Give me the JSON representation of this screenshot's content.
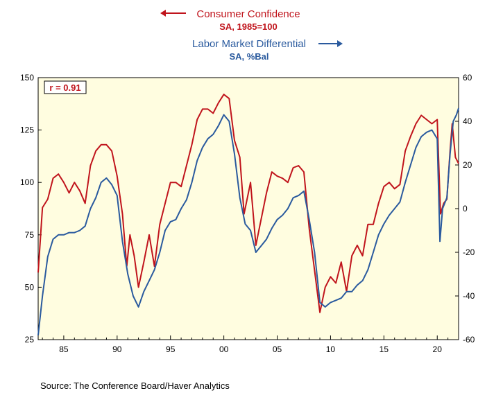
{
  "colors": {
    "red": "#c0141c",
    "blue": "#2a5a9e",
    "plot_bg": "#fffde0"
  },
  "legend": {
    "red_title": "Consumer Confidence",
    "red_sub": "SA, 1985=100",
    "blue_title": "Labor Market Differential",
    "blue_sub": "SA, %Bal"
  },
  "annotation": "r = 0.91",
  "source": "Source:  The Conference Board/Haver Analytics",
  "chart_data": {
    "type": "line",
    "x_ticks": [
      "85",
      "90",
      "95",
      "00",
      "05",
      "10",
      "15",
      "20"
    ],
    "x_tick_years": [
      1985,
      1990,
      1995,
      2000,
      2005,
      2010,
      2015,
      2020
    ],
    "xlim": [
      1982.6,
      2022.0
    ],
    "left_axis": {
      "ylim": [
        25,
        150
      ],
      "ticks": [
        25,
        50,
        75,
        100,
        125,
        150
      ]
    },
    "right_axis": {
      "ylim": [
        -60,
        60
      ],
      "ticks": [
        -60,
        -40,
        -20,
        0,
        20,
        40,
        60
      ]
    },
    "grid": false,
    "legend_position": "top-center",
    "series": [
      {
        "name": "Consumer Confidence",
        "axis": "left",
        "color": "#c0141c",
        "points": [
          [
            1982.6,
            57
          ],
          [
            1983.0,
            88
          ],
          [
            1983.5,
            92
          ],
          [
            1984.0,
            102
          ],
          [
            1984.5,
            104
          ],
          [
            1985.0,
            100
          ],
          [
            1985.5,
            95
          ],
          [
            1986.0,
            100
          ],
          [
            1986.5,
            96
          ],
          [
            1987.0,
            90
          ],
          [
            1987.5,
            108
          ],
          [
            1988.0,
            115
          ],
          [
            1988.5,
            118
          ],
          [
            1989.0,
            118
          ],
          [
            1989.5,
            115
          ],
          [
            1990.0,
            103
          ],
          [
            1990.5,
            85
          ],
          [
            1990.9,
            60
          ],
          [
            1991.2,
            75
          ],
          [
            1991.6,
            65
          ],
          [
            1992.0,
            50
          ],
          [
            1992.5,
            62
          ],
          [
            1993.0,
            75
          ],
          [
            1993.5,
            60
          ],
          [
            1994.0,
            80
          ],
          [
            1994.5,
            90
          ],
          [
            1995.0,
            100
          ],
          [
            1995.5,
            100
          ],
          [
            1996.0,
            98
          ],
          [
            1996.5,
            108
          ],
          [
            1997.0,
            118
          ],
          [
            1997.5,
            130
          ],
          [
            1998.0,
            135
          ],
          [
            1998.5,
            135
          ],
          [
            1999.0,
            133
          ],
          [
            1999.5,
            138
          ],
          [
            2000.0,
            142
          ],
          [
            2000.5,
            140
          ],
          [
            2001.0,
            120
          ],
          [
            2001.5,
            112
          ],
          [
            2001.9,
            85
          ],
          [
            2002.5,
            100
          ],
          [
            2003.0,
            70
          ],
          [
            2003.4,
            80
          ],
          [
            2004.0,
            95
          ],
          [
            2004.5,
            105
          ],
          [
            2005.0,
            103
          ],
          [
            2005.5,
            102
          ],
          [
            2006.0,
            100
          ],
          [
            2006.5,
            107
          ],
          [
            2007.0,
            108
          ],
          [
            2007.5,
            105
          ],
          [
            2008.0,
            78
          ],
          [
            2008.5,
            58
          ],
          [
            2009.0,
            38
          ],
          [
            2009.5,
            50
          ],
          [
            2010.0,
            55
          ],
          [
            2010.5,
            52
          ],
          [
            2011.0,
            62
          ],
          [
            2011.5,
            48
          ],
          [
            2012.0,
            65
          ],
          [
            2012.5,
            70
          ],
          [
            2013.0,
            65
          ],
          [
            2013.5,
            80
          ],
          [
            2014.0,
            80
          ],
          [
            2014.5,
            90
          ],
          [
            2015.0,
            98
          ],
          [
            2015.5,
            100
          ],
          [
            2016.0,
            97
          ],
          [
            2016.5,
            99
          ],
          [
            2017.0,
            115
          ],
          [
            2017.5,
            122
          ],
          [
            2018.0,
            128
          ],
          [
            2018.5,
            132
          ],
          [
            2019.0,
            130
          ],
          [
            2019.5,
            128
          ],
          [
            2020.0,
            130
          ],
          [
            2020.3,
            85
          ],
          [
            2020.6,
            90
          ],
          [
            2020.9,
            92
          ],
          [
            2021.2,
            115
          ],
          [
            2021.4,
            128
          ],
          [
            2021.7,
            112
          ],
          [
            2022.0,
            109
          ]
        ]
      },
      {
        "name": "Labor Market Differential",
        "axis": "right",
        "color": "#2a5a9e",
        "points": [
          [
            1982.6,
            -58
          ],
          [
            1983.0,
            -40
          ],
          [
            1983.5,
            -22
          ],
          [
            1984.0,
            -14
          ],
          [
            1984.5,
            -12
          ],
          [
            1985.0,
            -12
          ],
          [
            1985.5,
            -11
          ],
          [
            1986.0,
            -11
          ],
          [
            1986.5,
            -10
          ],
          [
            1987.0,
            -8
          ],
          [
            1987.5,
            0
          ],
          [
            1988.0,
            5
          ],
          [
            1988.5,
            12
          ],
          [
            1989.0,
            14
          ],
          [
            1989.5,
            11
          ],
          [
            1990.0,
            6
          ],
          [
            1990.5,
            -15
          ],
          [
            1991.0,
            -30
          ],
          [
            1991.5,
            -40
          ],
          [
            1992.0,
            -45
          ],
          [
            1992.5,
            -38
          ],
          [
            1993.0,
            -33
          ],
          [
            1993.5,
            -28
          ],
          [
            1994.0,
            -20
          ],
          [
            1994.5,
            -10
          ],
          [
            1995.0,
            -6
          ],
          [
            1995.5,
            -5
          ],
          [
            1996.0,
            0
          ],
          [
            1996.5,
            4
          ],
          [
            1997.0,
            12
          ],
          [
            1997.5,
            22
          ],
          [
            1998.0,
            28
          ],
          [
            1998.5,
            32
          ],
          [
            1999.0,
            34
          ],
          [
            1999.5,
            38
          ],
          [
            2000.0,
            43
          ],
          [
            2000.5,
            40
          ],
          [
            2001.0,
            25
          ],
          [
            2001.5,
            5
          ],
          [
            2002.0,
            -7
          ],
          [
            2002.5,
            -10
          ],
          [
            2003.0,
            -20
          ],
          [
            2003.5,
            -17
          ],
          [
            2004.0,
            -14
          ],
          [
            2004.5,
            -9
          ],
          [
            2005.0,
            -5
          ],
          [
            2005.5,
            -3
          ],
          [
            2006.0,
            0
          ],
          [
            2006.5,
            5
          ],
          [
            2007.0,
            6
          ],
          [
            2007.5,
            8
          ],
          [
            2008.0,
            -5
          ],
          [
            2008.5,
            -20
          ],
          [
            2009.0,
            -43
          ],
          [
            2009.5,
            -45
          ],
          [
            2010.0,
            -43
          ],
          [
            2010.5,
            -42
          ],
          [
            2011.0,
            -41
          ],
          [
            2011.5,
            -38
          ],
          [
            2012.0,
            -38
          ],
          [
            2012.5,
            -35
          ],
          [
            2013.0,
            -33
          ],
          [
            2013.5,
            -28
          ],
          [
            2014.0,
            -20
          ],
          [
            2014.5,
            -12
          ],
          [
            2015.0,
            -7
          ],
          [
            2015.5,
            -3
          ],
          [
            2016.0,
            0
          ],
          [
            2016.5,
            3
          ],
          [
            2017.0,
            12
          ],
          [
            2017.5,
            20
          ],
          [
            2018.0,
            28
          ],
          [
            2018.5,
            33
          ],
          [
            2019.0,
            35
          ],
          [
            2019.5,
            36
          ],
          [
            2020.0,
            32
          ],
          [
            2020.25,
            -15
          ],
          [
            2020.5,
            0
          ],
          [
            2020.9,
            5
          ],
          [
            2021.2,
            25
          ],
          [
            2021.5,
            40
          ],
          [
            2021.8,
            43
          ],
          [
            2022.0,
            46
          ]
        ]
      }
    ]
  }
}
